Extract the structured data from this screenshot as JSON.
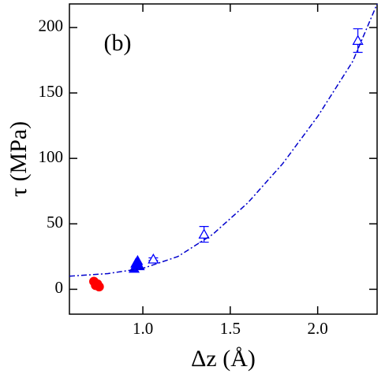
{
  "chart_data": {
    "type": "scatter",
    "xlabel": "Δz (Å)",
    "ylabel": "τ (MPa)",
    "annotation": "(b)",
    "xlim": [
      0.58,
      2.34
    ],
    "xticks": [
      {
        "value": 1,
        "label": "1.0"
      },
      1.5,
      {
        "value": 2,
        "label": "2.0"
      }
    ],
    "ylim": [
      -19,
      218
    ],
    "yticks": [
      0,
      50,
      100,
      150,
      200
    ],
    "series": [
      {
        "marker": "circle-filled",
        "color": "#ff0000",
        "x": [
          0.72,
          0.74,
          0.75,
          0.73
        ],
        "values": [
          6,
          4,
          2,
          3
        ]
      },
      {
        "marker": "triangle-filled",
        "color": "#0000ff",
        "x": [
          0.95,
          0.96,
          0.97,
          0.98
        ],
        "values": [
          16,
          20,
          22,
          18
        ]
      },
      {
        "marker": "triangle-open",
        "color": "#0000ff",
        "x": [
          1.06,
          1.35,
          2.23
        ],
        "values": [
          23,
          42,
          190
        ],
        "errors": [
          1,
          6,
          9
        ]
      },
      {
        "marker": "dashdot-line",
        "color": "#0000cc",
        "x": [
          0.58,
          0.8,
          1.0,
          1.2,
          1.4,
          1.6,
          1.8,
          2.0,
          2.2,
          2.34
        ],
        "values": [
          10,
          12,
          16,
          25,
          42,
          66,
          96,
          132,
          174,
          218
        ]
      }
    ]
  }
}
